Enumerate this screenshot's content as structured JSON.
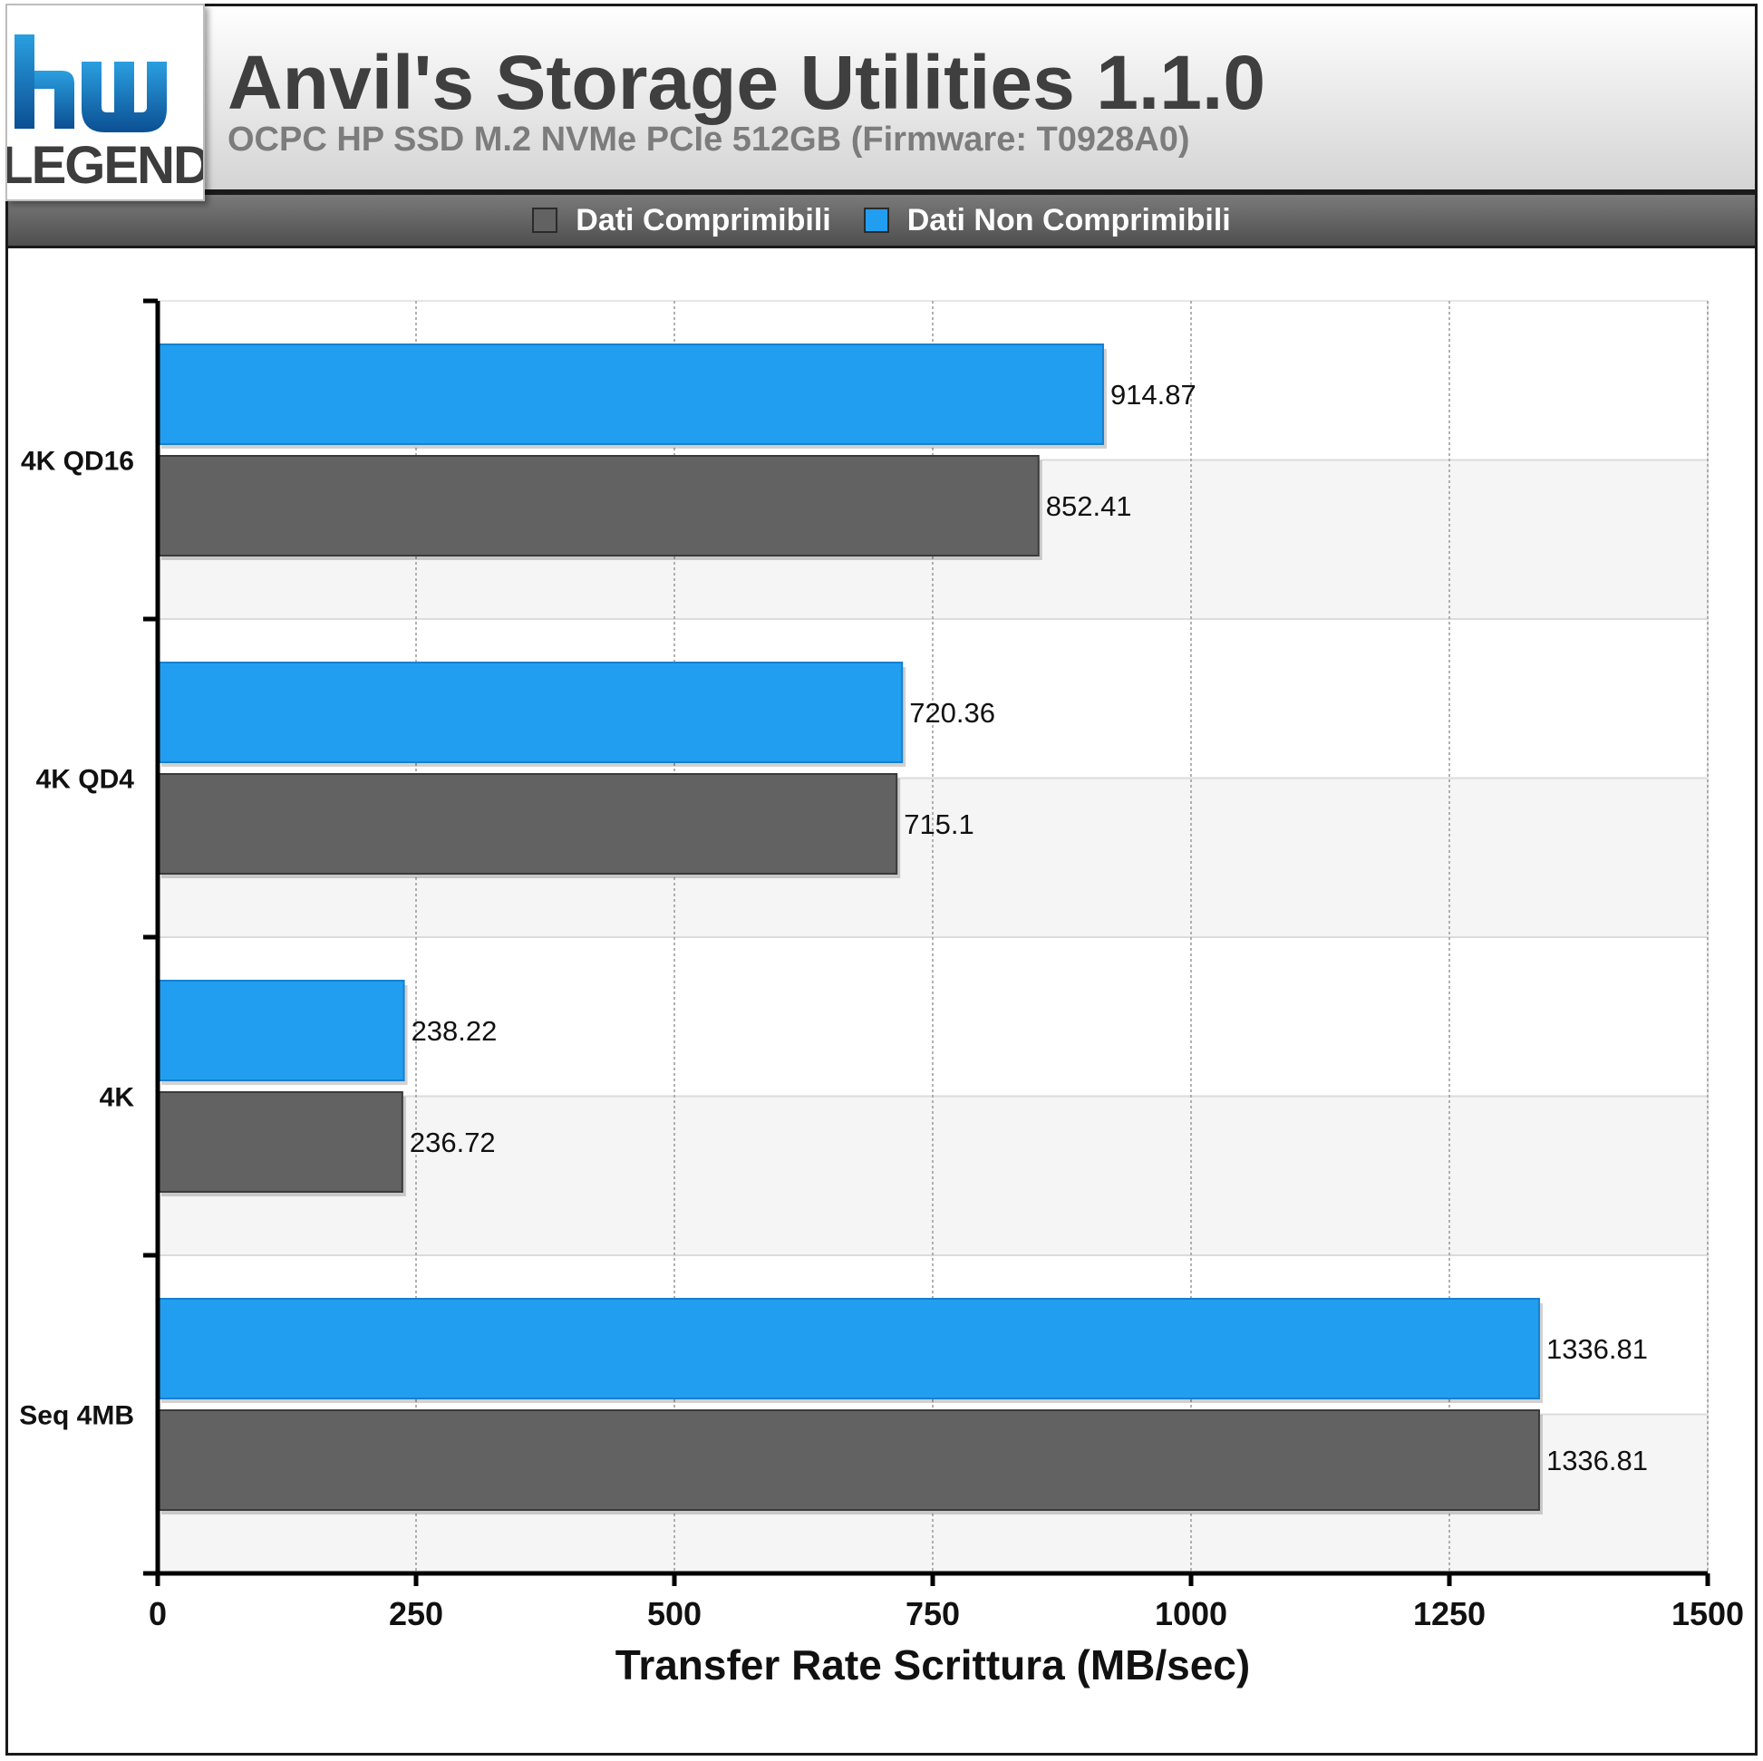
{
  "header": {
    "title": "Anvil's Storage Utilities 1.1.0",
    "subtitle": "OCPC HP SSD M.2 NVMe PCIe 512GB (Firmware: T0928A0)"
  },
  "logo": {
    "top_text": "hw",
    "bottom_text": "LEGEND"
  },
  "colors": {
    "compressible": "#626262",
    "incompressible": "#229ef0",
    "grid": "#999999"
  },
  "chart_data": {
    "type": "bar",
    "orientation": "horizontal",
    "categories": [
      "4K QD16",
      "4K QD4",
      "4K",
      "Seq 4MB"
    ],
    "series": [
      {
        "name": "Dati Non Comprimibili",
        "values": [
          914.87,
          720.36,
          238.22,
          1336.81
        ]
      },
      {
        "name": "Dati Comprimibili",
        "values": [
          852.41,
          715.1,
          236.72,
          1336.81
        ]
      }
    ],
    "value_labels": {
      "Dati Non Comprimibili": [
        "914.87",
        "720.36",
        "238.22",
        "1336.81"
      ],
      "Dati Comprimibili": [
        "852.41",
        "715.1",
        "236.72",
        "1336.81"
      ]
    },
    "xlabel": "Transfer Rate Scrittura (MB/sec)",
    "xlim": [
      0,
      1500
    ],
    "xticks": [
      0,
      250,
      500,
      750,
      1000,
      1250,
      1500
    ],
    "legend": {
      "position": "top",
      "entries": [
        "Dati Comprimibili",
        "Dati Non Comprimibili"
      ]
    },
    "grid": true
  }
}
